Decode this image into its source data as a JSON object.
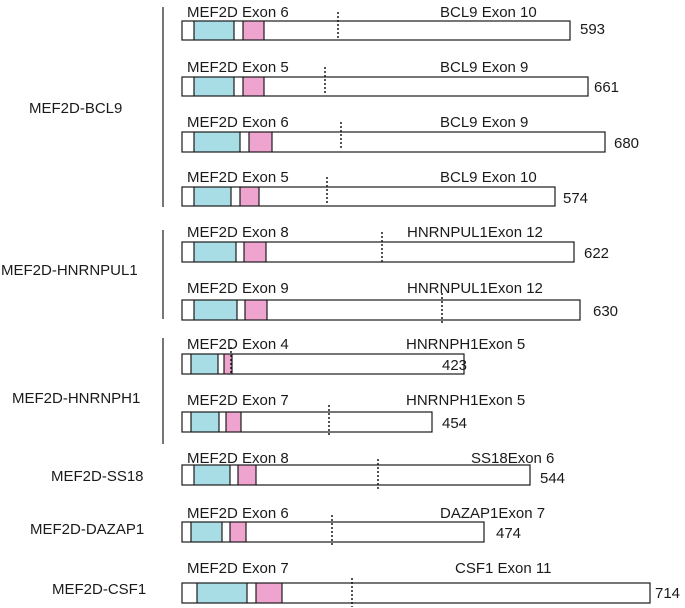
{
  "colors": {
    "domain_blue": "#a9dde6",
    "domain_pink": "#eea4cf",
    "outline": "#1a1a1a",
    "background": "#ffffff"
  },
  "groups": [
    {
      "name": "MEF2D-BCL9"
    },
    {
      "name": "MEF2D-HNRNPUL1"
    },
    {
      "name": "MEF2D-HNRNPH1"
    },
    {
      "name": "MEF2D-SS18"
    },
    {
      "name": "MEF2D-DAZAP1"
    },
    {
      "name": "MEF2D-CSF1"
    }
  ],
  "transcripts": [
    {
      "group": "MEF2D-BCL9",
      "mef2d_exon": "MEF2D Exon 6",
      "partner_exon": "BCL9 Exon 10",
      "length": "593"
    },
    {
      "group": "MEF2D-BCL9",
      "mef2d_exon": "MEF2D Exon 5",
      "partner_exon": "BCL9 Exon 9",
      "length": "661"
    },
    {
      "group": "MEF2D-BCL9",
      "mef2d_exon": "MEF2D Exon 6",
      "partner_exon": "BCL9 Exon 9",
      "length": "680"
    },
    {
      "group": "MEF2D-BCL9",
      "mef2d_exon": "MEF2D Exon 5",
      "partner_exon": "BCL9 Exon 10",
      "length": "574"
    },
    {
      "group": "MEF2D-HNRNPUL1",
      "mef2d_exon": "MEF2D Exon 8",
      "partner_exon": "HNRNPUL1Exon 12",
      "length": "622"
    },
    {
      "group": "MEF2D-HNRNPUL1",
      "mef2d_exon": "MEF2D Exon 9",
      "partner_exon": "HNRNPUL1Exon 12",
      "length": "630"
    },
    {
      "group": "MEF2D-HNRNPH1",
      "mef2d_exon": "MEF2D Exon 4",
      "partner_exon": "HNRNPH1Exon 5",
      "length": "423"
    },
    {
      "group": "MEF2D-HNRNPH1",
      "mef2d_exon": "MEF2D Exon 7",
      "partner_exon": "HNRNPH1Exon 5",
      "length": "454"
    },
    {
      "group": "MEF2D-SS18",
      "mef2d_exon": "MEF2D Exon 8",
      "partner_exon": "SS18Exon 6",
      "length": "544"
    },
    {
      "group": "MEF2D-DAZAP1",
      "mef2d_exon": "MEF2D Exon 6",
      "partner_exon": "DAZAP1Exon 7",
      "length": "474"
    },
    {
      "group": "MEF2D-CSF1",
      "mef2d_exon": "MEF2D Exon 7",
      "partner_exon": "CSF1 Exon 11",
      "length": "714"
    }
  ]
}
